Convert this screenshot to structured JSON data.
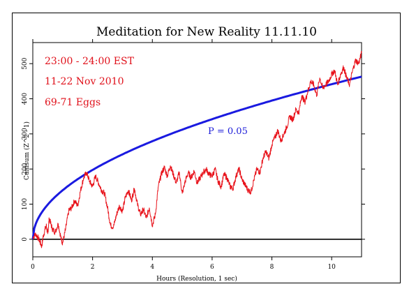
{
  "chart_data": {
    "type": "line",
    "title": "Meditation for New Reality 11.11.10",
    "xlabel": "Hours (Resolution, 1 sec)",
    "ylabel": "Cumsum (Z^2 - 1)",
    "xlim": [
      0,
      11
    ],
    "ylim": [
      -50,
      560
    ],
    "xticks": [
      0,
      2,
      4,
      6,
      8,
      10
    ],
    "yticks": [
      0,
      100,
      200,
      300,
      400,
      500
    ],
    "grid": false,
    "annotations": [
      {
        "text": "23:00 - 24:00 EST",
        "color": "#e0101a"
      },
      {
        "text": "11-22 Nov 2010",
        "color": "#e0101a"
      },
      {
        "text": "69-71 Eggs",
        "color": "#e0101a"
      }
    ],
    "p_label": {
      "text": "P = 0.05",
      "color": "#1a1ad8"
    },
    "colors": {
      "cumsum": "#e8141c",
      "envelope": "#1a1ae0",
      "baseline": "#000000"
    },
    "series": [
      {
        "role": "cumsum",
        "x": [
          0,
          0.1,
          0.2,
          0.3,
          0.35,
          0.45,
          0.5,
          0.55,
          0.65,
          0.75,
          0.85,
          0.95,
          1.0,
          1.1,
          1.2,
          1.3,
          1.4,
          1.5,
          1.6,
          1.7,
          1.8,
          1.9,
          2.0,
          2.1,
          2.2,
          2.3,
          2.4,
          2.5,
          2.6,
          2.7,
          2.8,
          2.9,
          3.0,
          3.1,
          3.2,
          3.3,
          3.4,
          3.5,
          3.6,
          3.7,
          3.8,
          3.9,
          4.0,
          4.1,
          4.2,
          4.3,
          4.4,
          4.5,
          4.6,
          4.7,
          4.8,
          4.9,
          5.0,
          5.1,
          5.2,
          5.3,
          5.4,
          5.5,
          5.6,
          5.7,
          5.8,
          5.9,
          6.0,
          6.1,
          6.2,
          6.3,
          6.4,
          6.5,
          6.6,
          6.7,
          6.8,
          6.9,
          7.0,
          7.1,
          7.2,
          7.3,
          7.4,
          7.5,
          7.6,
          7.7,
          7.8,
          7.9,
          8.0,
          8.1,
          8.2,
          8.3,
          8.4,
          8.5,
          8.6,
          8.7,
          8.8,
          8.9,
          9.0,
          9.1,
          9.2,
          9.3,
          9.4,
          9.5,
          9.6,
          9.7,
          9.8,
          9.9,
          10.0,
          10.1,
          10.2,
          10.3,
          10.4,
          10.5,
          10.6,
          10.7,
          10.8,
          10.9,
          11.0
        ],
        "y": [
          5,
          15,
          0,
          -20,
          10,
          40,
          15,
          60,
          30,
          20,
          45,
          0,
          -10,
          30,
          80,
          90,
          110,
          95,
          140,
          175,
          190,
          165,
          150,
          180,
          160,
          140,
          130,
          90,
          40,
          35,
          70,
          95,
          80,
          120,
          140,
          110,
          145,
          100,
          70,
          85,
          60,
          90,
          40,
          70,
          150,
          185,
          205,
          180,
          210,
          185,
          160,
          190,
          130,
          165,
          190,
          175,
          195,
          160,
          175,
          190,
          200,
          185,
          180,
          200,
          165,
          150,
          185,
          175,
          150,
          145,
          180,
          200,
          170,
          155,
          140,
          135,
          170,
          200,
          190,
          230,
          250,
          230,
          270,
          290,
          310,
          280,
          300,
          320,
          350,
          340,
          370,
          360,
          410,
          390,
          420,
          450,
          440,
          410,
          460,
          430,
          440,
          450,
          470,
          480,
          440,
          470,
          490,
          460,
          440,
          480,
          510,
          500,
          530
        ]
      }
    ]
  }
}
